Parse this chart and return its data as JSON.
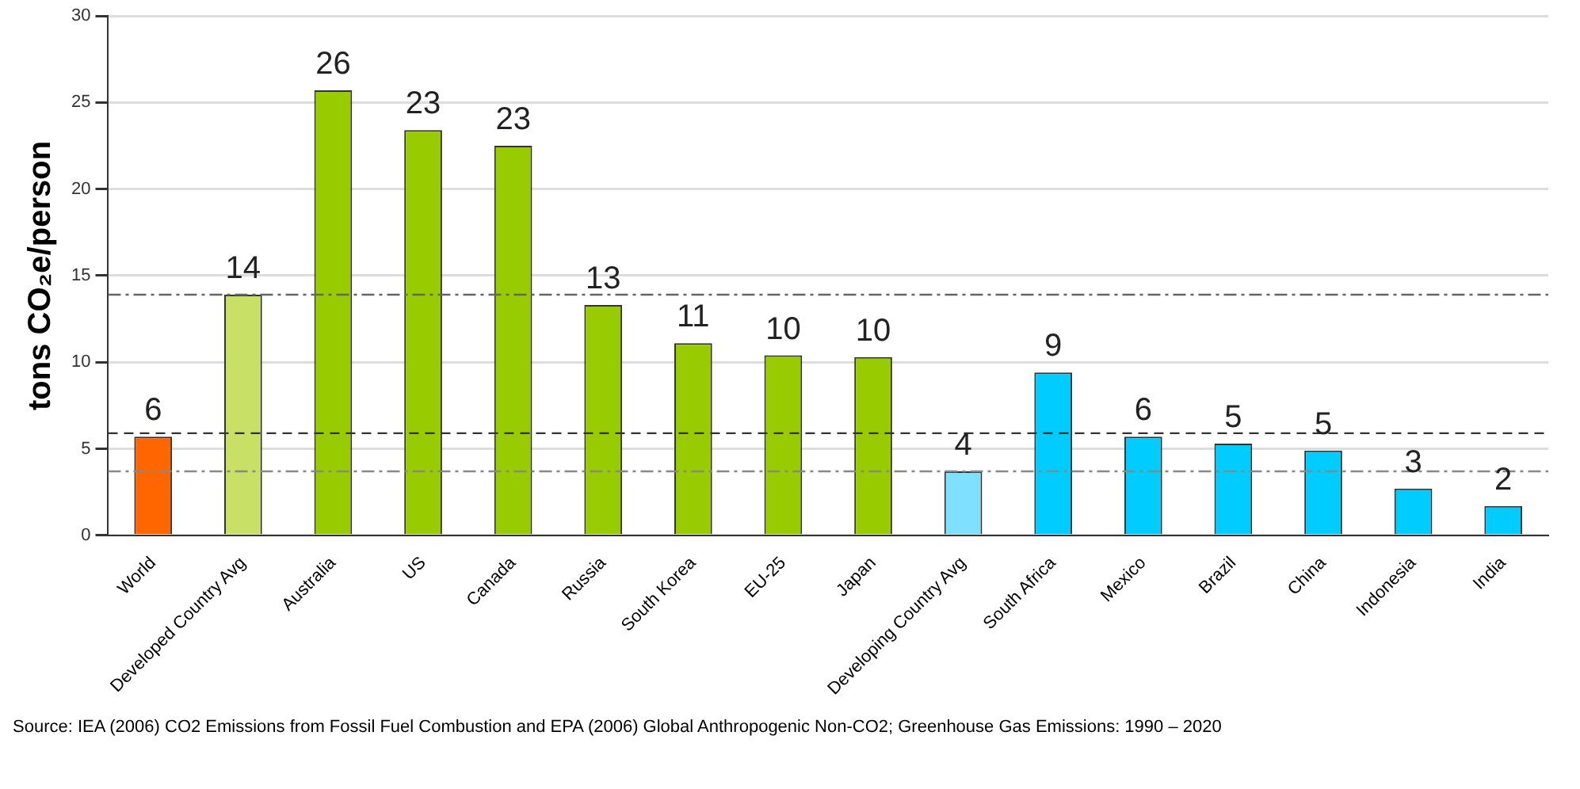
{
  "chart_data": {
    "type": "bar",
    "ylabel": "tons CO₂e/person",
    "categories": [
      "World",
      "Developed Country Avg",
      "Australia",
      "US",
      "Canada",
      "Russia",
      "South Korea",
      "EU-25",
      "Japan",
      "Developing Country Avg",
      "South Africa",
      "Mexico",
      "Brazil",
      "China",
      "Indonesia",
      "India"
    ],
    "values": [
      5.7,
      13.9,
      25.7,
      23.4,
      22.5,
      13.3,
      11.1,
      10.4,
      10.3,
      3.7,
      9.4,
      5.7,
      5.3,
      4.9,
      2.7,
      1.7
    ],
    "colors": [
      "#ff6600",
      "#c8e066",
      "#99cc00",
      "#99cc00",
      "#99cc00",
      "#99cc00",
      "#99cc00",
      "#99cc00",
      "#99cc00",
      "#80e0ff",
      "#00ccff",
      "#00ccff",
      "#00ccff",
      "#00ccff",
      "#00ccff",
      "#00ccff"
    ],
    "value_labels": [
      "6",
      "14",
      "26",
      "23",
      "23",
      "13",
      "11",
      "10",
      "10",
      "4",
      "9",
      "6",
      "5",
      "5",
      "3",
      "2"
    ],
    "ylim": [
      0,
      30
    ],
    "yticks": [
      0,
      5,
      10,
      15,
      20,
      25,
      30
    ],
    "grid": "y",
    "legend": false,
    "ref_lines": [
      {
        "axis": "y",
        "value": 13.9,
        "color": "#666666",
        "line_style": "dashdot"
      },
      {
        "axis": "y",
        "value": 5.9,
        "color": "#333333",
        "line_style": "dashed"
      },
      {
        "axis": "y",
        "value": 3.7,
        "color": "#888888",
        "line_style": "dashdot"
      }
    ],
    "annotations": [
      "Source: IEA (2006) CO2 Emissions from Fossil Fuel Combustion and EPA (2006) Global Anthropogenic Non-CO2; Greenhouse Gas Emissions: 1990 – 2020"
    ]
  }
}
